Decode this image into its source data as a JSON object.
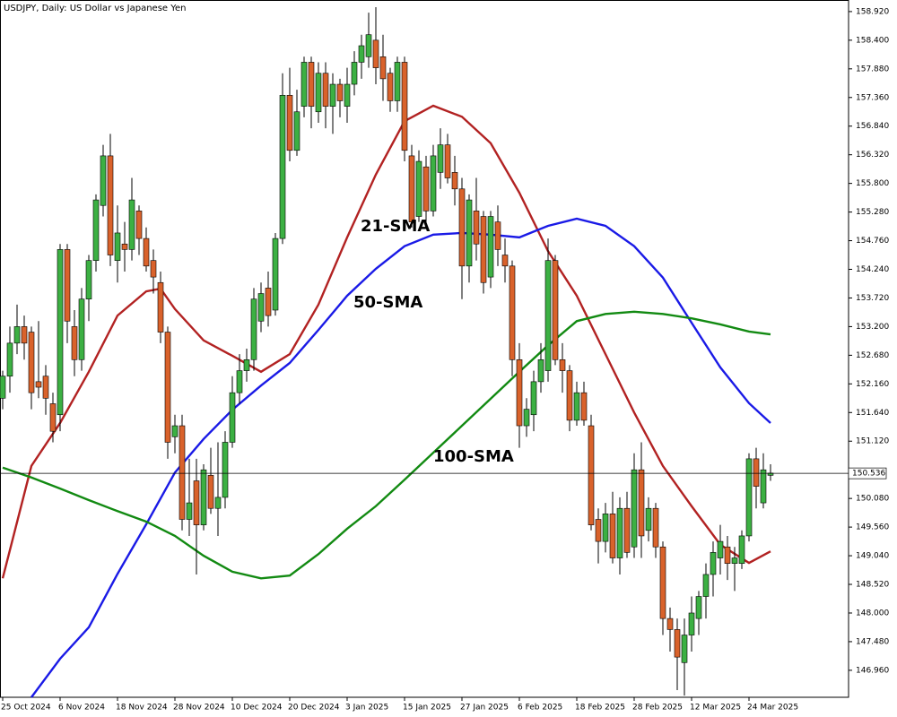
{
  "chart_data": {
    "type": "candlestick",
    "title": "USDJPY, Daily:  US Dollar vs Japanese Yen",
    "categories": [
      "25 Oct 2024",
      null,
      null,
      null,
      null,
      null,
      null,
      null,
      "6 Nov 2024",
      null,
      null,
      null,
      null,
      null,
      null,
      null,
      "18 Nov 2024",
      null,
      null,
      null,
      null,
      null,
      null,
      null,
      "28 Nov 2024",
      null,
      null,
      null,
      null,
      null,
      null,
      null,
      "10 Dec 2024",
      null,
      null,
      null,
      null,
      null,
      null,
      null,
      "20 Dec 2024",
      null,
      null,
      null,
      null,
      null,
      null,
      null,
      "3 Jan 2025",
      null,
      null,
      null,
      null,
      null,
      null,
      null,
      "15 Jan 2025",
      null,
      null,
      null,
      null,
      null,
      null,
      null,
      "27 Jan 2025",
      null,
      null,
      null,
      null,
      null,
      null,
      null,
      "6 Feb 2025",
      null,
      null,
      null,
      null,
      null,
      null,
      null,
      "18 Feb 2025",
      null,
      null,
      null,
      null,
      null,
      null,
      null,
      "28 Feb 2025",
      null,
      null,
      null,
      null,
      null,
      null,
      null,
      "12 Mar 2025",
      null,
      null,
      null,
      null,
      null,
      null,
      null,
      "24 Mar 2025",
      null,
      null,
      null
    ],
    "open": [
      151.9,
      152.3,
      152.9,
      153.2,
      153.1,
      152.2,
      152.3,
      151.8,
      151.6,
      154.6,
      153.2,
      152.6,
      153.7,
      154.4,
      155.4,
      156.3,
      154.4,
      154.7,
      154.6,
      155.3,
      154.8,
      154.4,
      154.0,
      153.1,
      151.2,
      151.4,
      149.7,
      150.4,
      149.6,
      150.5,
      149.9,
      150.1,
      151.1,
      152.0,
      152.4,
      152.6,
      153.3,
      153.9,
      153.5,
      154.8,
      157.4,
      156.4,
      157.2,
      158.0,
      157.1,
      157.8,
      157.2,
      157.6,
      157.2,
      157.6,
      158.0,
      158.1,
      158.4,
      158.1,
      157.8,
      157.3,
      158.0,
      156.3,
      155.2,
      156.1,
      155.3,
      156.0,
      156.5,
      156.0,
      155.7,
      154.3,
      155.3,
      155.2,
      154.1,
      155.1,
      154.5,
      154.3,
      152.6,
      151.4,
      151.6,
      152.2,
      152.4,
      154.4,
      152.6,
      152.4,
      151.5,
      152.0,
      151.4,
      149.7,
      149.3,
      149.8,
      149.0,
      149.9,
      149.2,
      150.6,
      149.5,
      149.9,
      149.2,
      147.9,
      147.7,
      147.1,
      147.6,
      147.9,
      148.3,
      148.7,
      149.0,
      149.2,
      148.9,
      148.9,
      149.4,
      150.8,
      150.0,
      150.5
    ],
    "high": [
      152.4,
      153.2,
      153.6,
      153.4,
      153.2,
      153.3,
      152.5,
      152.0,
      154.7,
      154.7,
      153.5,
      153.9,
      154.5,
      155.6,
      156.5,
      156.7,
      155.4,
      155.1,
      155.9,
      155.4,
      155.0,
      154.6,
      154.2,
      153.2,
      151.6,
      151.6,
      150.8,
      150.8,
      150.7,
      151.0,
      151.1,
      151.3,
      152.3,
      152.7,
      152.8,
      153.9,
      154.0,
      154.2,
      154.9,
      157.8,
      157.9,
      157.5,
      158.1,
      158.1,
      158.0,
      158.0,
      157.8,
      157.7,
      157.9,
      158.2,
      158.5,
      158.9,
      159.0,
      158.5,
      157.9,
      158.1,
      158.1,
      156.5,
      156.4,
      156.3,
      156.5,
      156.8,
      156.7,
      156.3,
      155.9,
      155.6,
      155.9,
      155.3,
      155.3,
      155.4,
      154.8,
      154.4,
      152.9,
      151.9,
      152.4,
      152.9,
      154.8,
      154.5,
      152.9,
      152.5,
      152.2,
      152.2,
      151.6,
      149.9,
      150.0,
      150.2,
      150.1,
      150.2,
      150.9,
      151.1,
      150.1,
      150.0,
      149.3,
      148.1,
      147.9,
      147.9,
      148.3,
      148.4,
      148.9,
      149.3,
      149.6,
      149.4,
      149.2,
      149.5,
      150.9,
      151.0,
      150.9,
      150.7
    ],
    "low": [
      151.7,
      152.0,
      152.7,
      152.6,
      151.7,
      151.9,
      151.6,
      151.1,
      151.3,
      152.9,
      152.3,
      152.4,
      153.3,
      154.2,
      155.2,
      154.3,
      154.0,
      154.2,
      154.4,
      154.5,
      154.2,
      153.8,
      152.9,
      150.8,
      150.9,
      149.5,
      149.4,
      148.7,
      149.5,
      149.8,
      149.4,
      149.9,
      151.0,
      151.8,
      152.2,
      152.4,
      153.1,
      153.2,
      153.4,
      154.7,
      156.2,
      156.3,
      157.0,
      156.8,
      156.9,
      156.8,
      156.7,
      157.0,
      156.9,
      157.4,
      157.7,
      157.9,
      157.6,
      157.3,
      157.1,
      157.1,
      156.2,
      155.0,
      155.1,
      155.1,
      155.2,
      155.7,
      155.8,
      155.4,
      153.7,
      154.0,
      154.4,
      153.8,
      153.9,
      154.3,
      154.0,
      152.3,
      151.0,
      151.2,
      151.3,
      152.0,
      152.2,
      152.5,
      152.0,
      151.3,
      151.4,
      151.4,
      149.5,
      148.9,
      149.1,
      148.9,
      148.7,
      149.0,
      149.0,
      149.0,
      149.3,
      149.0,
      147.6,
      147.3,
      146.6,
      146.5,
      147.3,
      147.6,
      147.9,
      148.3,
      148.7,
      148.6,
      148.4,
      148.8,
      149.3,
      149.9,
      149.9,
      150.4
    ],
    "close": [
      152.3,
      152.9,
      153.2,
      152.9,
      152.0,
      152.1,
      151.9,
      151.3,
      154.6,
      153.3,
      152.6,
      153.7,
      154.4,
      155.5,
      156.3,
      154.5,
      154.9,
      154.6,
      155.5,
      154.8,
      154.3,
      154.1,
      153.1,
      151.1,
      151.4,
      149.7,
      150.0,
      149.6,
      150.6,
      149.9,
      150.1,
      151.1,
      152.0,
      152.4,
      152.6,
      153.7,
      153.8,
      153.4,
      154.8,
      157.4,
      156.4,
      157.1,
      158.0,
      157.2,
      157.8,
      157.2,
      157.6,
      157.3,
      157.6,
      158.0,
      158.3,
      158.5,
      157.9,
      157.7,
      157.3,
      158.0,
      156.4,
      155.1,
      156.2,
      155.3,
      156.3,
      156.5,
      155.9,
      155.7,
      154.3,
      155.5,
      154.7,
      154.0,
      155.2,
      154.6,
      154.3,
      152.6,
      151.4,
      151.7,
      152.2,
      152.6,
      154.4,
      152.6,
      152.4,
      151.5,
      152.0,
      151.5,
      149.6,
      149.3,
      149.8,
      149.0,
      149.9,
      149.1,
      150.6,
      149.4,
      149.9,
      149.2,
      147.9,
      147.7,
      147.2,
      147.6,
      148.0,
      148.3,
      148.7,
      149.1,
      149.3,
      148.9,
      149.0,
      149.4,
      150.8,
      150.3,
      150.6,
      150.54
    ],
    "bull_color": "#3cb043",
    "bear_color": "#d9622b",
    "ylim": [
      146.47,
      159.13
    ],
    "yticks": [
      {
        "value": 158.92,
        "label": "158.920"
      },
      {
        "value": 158.4,
        "label": "158.400"
      },
      {
        "value": 157.88,
        "label": "157.880"
      },
      {
        "value": 157.36,
        "label": "157.360"
      },
      {
        "value": 156.84,
        "label": "156.840"
      },
      {
        "value": 156.32,
        "label": "156.320"
      },
      {
        "value": 155.8,
        "label": "155.800"
      },
      {
        "value": 155.28,
        "label": "155.280"
      },
      {
        "value": 154.76,
        "label": "154.760"
      },
      {
        "value": 154.24,
        "label": "154.240"
      },
      {
        "value": 153.72,
        "label": "153.720"
      },
      {
        "value": 153.2,
        "label": "153.200"
      },
      {
        "value": 152.68,
        "label": "152.680"
      },
      {
        "value": 152.16,
        "label": "152.160"
      },
      {
        "value": 151.64,
        "label": "151.640"
      },
      {
        "value": 151.12,
        "label": "151.120"
      },
      {
        "value": 150.08,
        "label": "150.080"
      },
      {
        "value": 149.56,
        "label": "149.560"
      },
      {
        "value": 149.04,
        "label": "149.040"
      },
      {
        "value": 148.52,
        "label": "148.520"
      },
      {
        "value": 148.0,
        "label": "148.000"
      },
      {
        "value": 147.48,
        "label": "147.480"
      },
      {
        "value": 146.96,
        "label": "146.960"
      }
    ],
    "current_price": {
      "value": 150.536,
      "label": "150.536"
    },
    "series": [
      {
        "name": "21-SMA",
        "color": "#b22222",
        "x": [
          0,
          4,
          8,
          12,
          16,
          20,
          22,
          24,
          28,
          32,
          36,
          40,
          44,
          48,
          52,
          56,
          60,
          64,
          68,
          72,
          76,
          80,
          84,
          88,
          92,
          96,
          100,
          104,
          107
        ],
        "values": [
          148.63,
          150.67,
          151.45,
          152.38,
          153.4,
          153.84,
          153.89,
          153.52,
          152.95,
          152.67,
          152.38,
          152.7,
          153.6,
          154.82,
          155.96,
          156.93,
          157.21,
          157.01,
          156.53,
          155.63,
          154.57,
          153.76,
          152.7,
          151.64,
          150.67,
          149.94,
          149.24,
          148.91,
          149.12
        ]
      },
      {
        "name": "50-SMA",
        "color": "#1a1ae6",
        "x": [
          4,
          8,
          12,
          16,
          20,
          24,
          28,
          32,
          36,
          40,
          44,
          48,
          52,
          56,
          60,
          64,
          68,
          72,
          76,
          80,
          84,
          88,
          92,
          96,
          100,
          104,
          107
        ],
        "values": [
          146.47,
          147.17,
          147.74,
          148.71,
          149.61,
          150.55,
          151.16,
          151.69,
          152.13,
          152.54,
          153.14,
          153.76,
          154.25,
          154.66,
          154.87,
          154.9,
          154.87,
          154.82,
          155.03,
          155.16,
          155.03,
          154.66,
          154.09,
          153.27,
          152.46,
          151.81,
          151.45
        ]
      },
      {
        "name": "100-SMA",
        "color": "#128a12",
        "x": [
          0,
          4,
          8,
          12,
          16,
          20,
          24,
          28,
          32,
          36,
          40,
          44,
          48,
          52,
          56,
          60,
          64,
          68,
          72,
          76,
          80,
          84,
          88,
          92,
          96,
          100,
          104,
          107
        ],
        "values": [
          150.64,
          150.46,
          150.26,
          150.05,
          149.85,
          149.66,
          149.4,
          149.04,
          148.75,
          148.63,
          148.68,
          149.07,
          149.53,
          149.94,
          150.42,
          150.91,
          151.4,
          151.89,
          152.38,
          152.86,
          153.3,
          153.43,
          153.47,
          153.43,
          153.35,
          153.24,
          153.11,
          153.06
        ]
      }
    ]
  }
}
